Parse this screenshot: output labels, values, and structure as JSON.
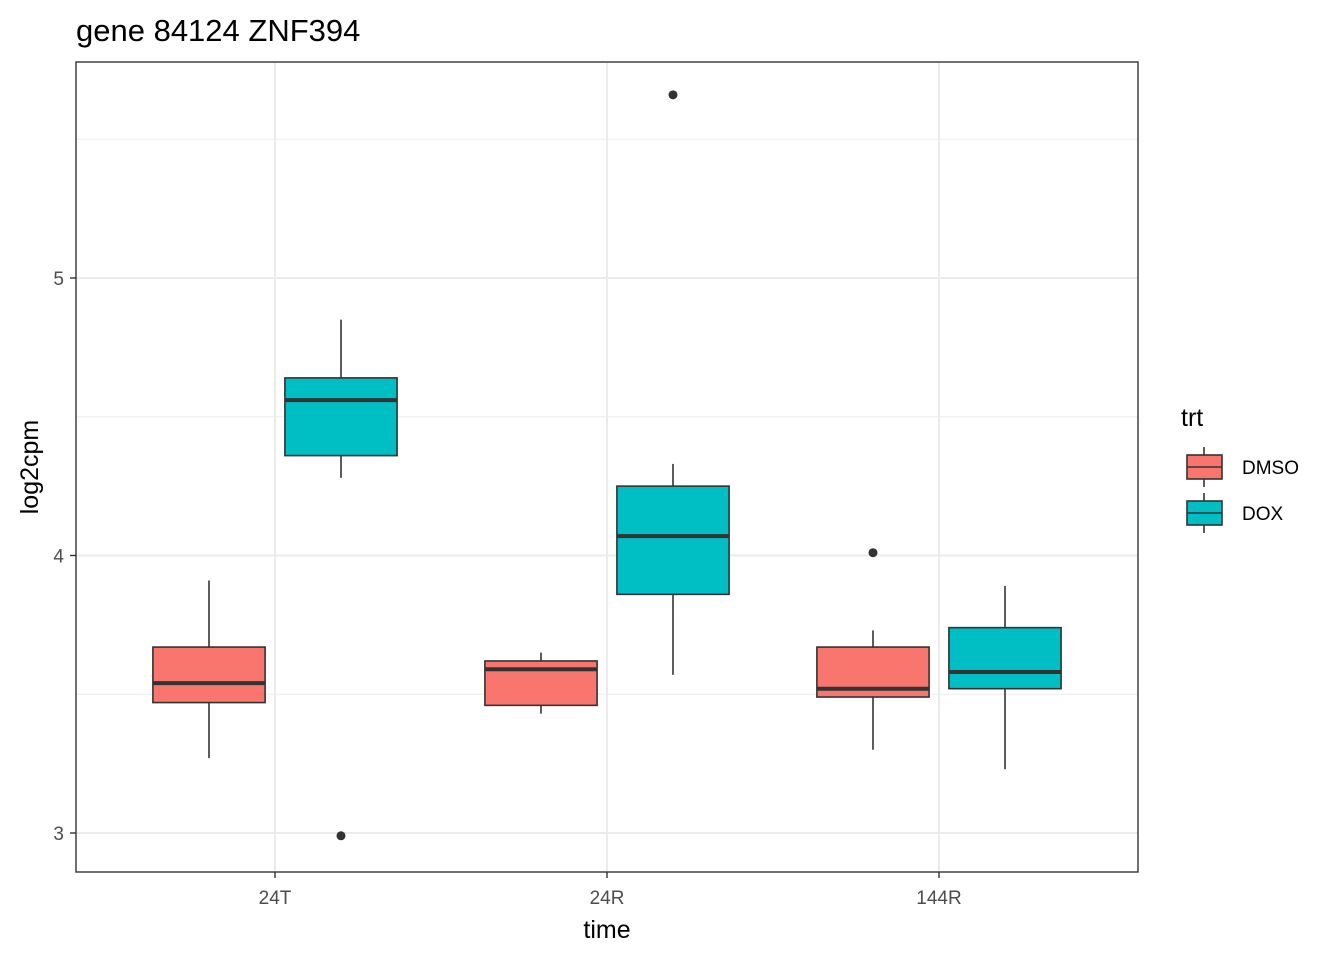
{
  "chart_data": {
    "type": "boxplot",
    "title": "gene 84124 ZNF394",
    "xlabel": "time",
    "ylabel": "log2cpm",
    "categories": [
      "24T",
      "24R",
      "144R"
    ],
    "yticks": [
      "3",
      "4",
      "5"
    ],
    "ylim": [
      2.86,
      5.79
    ],
    "grid": true,
    "legend": {
      "title": "trt",
      "position": "right",
      "entries": [
        {
          "name": "DMSO",
          "color": "#F8766D"
        },
        {
          "name": "DOX",
          "color": "#00BFC4"
        }
      ]
    },
    "series": [
      {
        "name": "DMSO",
        "color": "#F8766D",
        "boxes": [
          {
            "category": "24T",
            "whisker_low": 3.27,
            "q1": 3.47,
            "median": 3.54,
            "q3": 3.67,
            "whisker_high": 3.91,
            "outliers": []
          },
          {
            "category": "24R",
            "whisker_low": 3.43,
            "q1": 3.46,
            "median": 3.59,
            "q3": 3.62,
            "whisker_high": 3.65,
            "outliers": []
          },
          {
            "category": "144R",
            "whisker_low": 3.3,
            "q1": 3.49,
            "median": 3.52,
            "q3": 3.67,
            "whisker_high": 3.73,
            "outliers": [
              4.01
            ]
          }
        ]
      },
      {
        "name": "DOX",
        "color": "#00BFC4",
        "boxes": [
          {
            "category": "24T",
            "whisker_low": 4.28,
            "q1": 4.36,
            "median": 4.56,
            "q3": 4.64,
            "whisker_high": 4.85,
            "outliers": [
              2.99
            ]
          },
          {
            "category": "24R",
            "whisker_low": 3.57,
            "q1": 3.86,
            "median": 4.07,
            "q3": 4.25,
            "whisker_high": 4.33,
            "outliers": [
              5.66
            ]
          },
          {
            "category": "144R",
            "whisker_low": 3.23,
            "q1": 3.52,
            "median": 3.58,
            "q3": 3.74,
            "whisker_high": 3.89,
            "outliers": []
          }
        ]
      }
    ]
  }
}
